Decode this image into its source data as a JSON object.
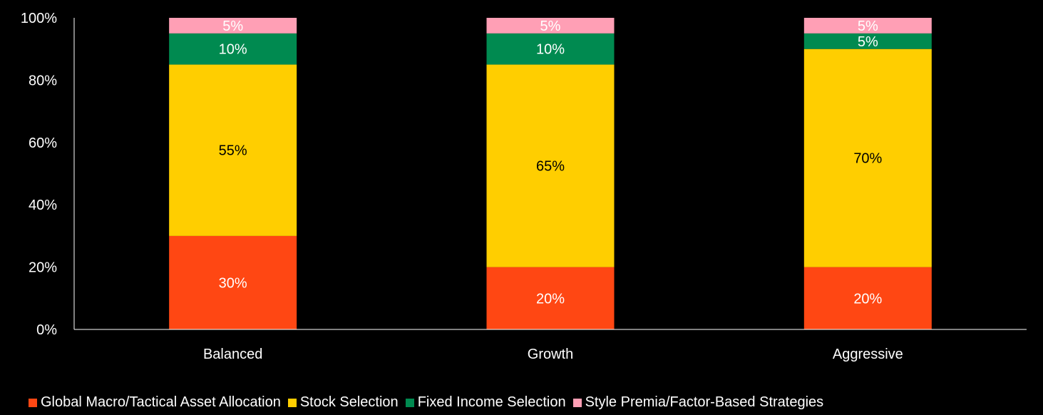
{
  "chart_data": {
    "type": "bar",
    "stacked": true,
    "stack_mode": "percent",
    "categories": [
      "Balanced",
      "Growth",
      "Aggressive"
    ],
    "series": [
      {
        "name": "Global Macro/Tactical Asset Allocation",
        "color": "#ff4713",
        "values": [
          30,
          20,
          20
        ],
        "labels": [
          "30%",
          "20%",
          "20%"
        ]
      },
      {
        "name": "Stock Selection",
        "color": "#ffce00",
        "values": [
          55,
          65,
          70
        ],
        "labels": [
          "55%",
          "65%",
          "70%"
        ]
      },
      {
        "name": "Fixed Income Selection",
        "color": "#008a50",
        "values": [
          10,
          10,
          5
        ],
        "labels": [
          "10%",
          "10%",
          "5%"
        ]
      },
      {
        "name": "Style Premia/Factor-Based Strategies",
        "color": "#ff9fb5",
        "values": [
          5,
          5,
          5
        ],
        "labels": [
          "5%",
          "5%",
          "5%"
        ]
      }
    ],
    "yticks": [
      "0%",
      "20%",
      "40%",
      "60%",
      "80%",
      "100%"
    ],
    "ylim": [
      0,
      100
    ],
    "title": "",
    "xlabel": "",
    "ylabel": "",
    "grid": false,
    "legend_position": "bottom"
  }
}
